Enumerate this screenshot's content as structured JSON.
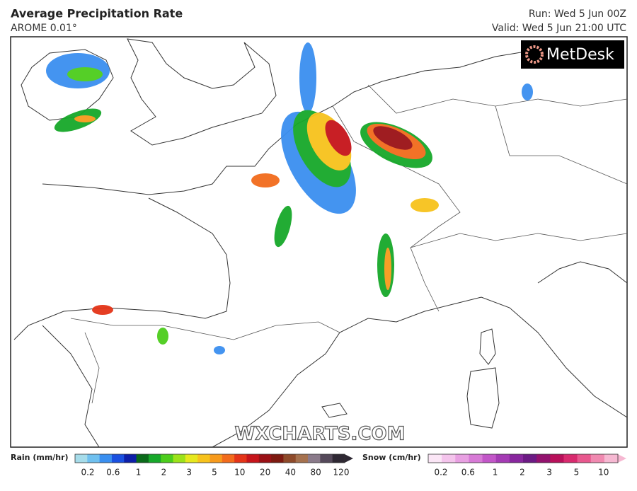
{
  "header": {
    "title": "Average Precipitation Rate",
    "subtitle": "AROME 0.01°",
    "run": "Run: Wed 5 Jun 00Z",
    "valid": "Valid: Wed 5 Jun 21:00 UTC"
  },
  "logo": "MetDesk",
  "watermark": "WXCHARTS.COM",
  "legend": {
    "rain": {
      "label": "Rain (mm/hr)",
      "ticks": [
        "0.2",
        "0.6",
        "1",
        "2",
        "3",
        "5",
        "10",
        "20",
        "40",
        "80",
        "120"
      ],
      "colors": [
        "#a6dcea",
        "#6fc0ef",
        "#3a8ff0",
        "#1a50e0",
        "#0d1fa8",
        "#0a6a1a",
        "#17a82a",
        "#4ccd1c",
        "#9ce21a",
        "#e6e81e",
        "#f7c21c",
        "#f79a1c",
        "#f26b1c",
        "#e43418",
        "#c6141a",
        "#9a1116",
        "#7d1a10",
        "#8e4a2a",
        "#a5714e",
        "#8a7a8a",
        "#55495a",
        "#2e2833"
      ]
    },
    "snow": {
      "label": "Snow (cm/hr)",
      "ticks": [
        "0.2",
        "0.6",
        "1",
        "2",
        "3",
        "5",
        "10"
      ],
      "colors": [
        "#fbe6f6",
        "#f4c4ec",
        "#e8a0e2",
        "#d77ad6",
        "#c256c8",
        "#a43bb4",
        "#88269e",
        "#6c1a84",
        "#93126e",
        "#b8105a",
        "#d82a6e",
        "#e8588e",
        "#f089b0",
        "#f6b8d2"
      ]
    }
  }
}
